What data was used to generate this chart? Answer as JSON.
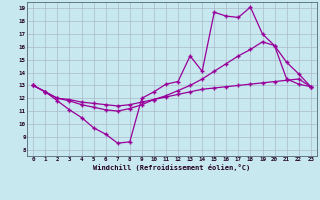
{
  "xlabel": "Windchill (Refroidissement éolien,°C)",
  "bg_color": "#c8e8f0",
  "grid_color": "#aabbc8",
  "line_color": "#990099",
  "xlim": [
    -0.5,
    23.5
  ],
  "ylim": [
    7.5,
    19.5
  ],
  "xticks": [
    0,
    1,
    2,
    3,
    4,
    5,
    6,
    7,
    8,
    9,
    10,
    11,
    12,
    13,
    14,
    15,
    16,
    17,
    18,
    19,
    20,
    21,
    22,
    23
  ],
  "yticks": [
    8,
    9,
    10,
    11,
    12,
    13,
    14,
    15,
    16,
    17,
    18,
    19
  ],
  "line1_x": [
    0,
    1,
    2,
    3,
    4,
    5,
    6,
    7,
    8,
    9,
    10,
    11,
    12,
    13,
    14,
    15,
    16,
    17,
    18,
    19,
    20,
    21,
    22,
    23
  ],
  "line1_y": [
    13.0,
    12.5,
    11.8,
    11.1,
    10.5,
    9.7,
    9.2,
    8.5,
    8.6,
    12.0,
    12.5,
    13.1,
    13.3,
    15.3,
    14.1,
    18.7,
    18.4,
    18.3,
    19.1,
    17.0,
    16.1,
    14.8,
    13.9,
    12.9
  ],
  "line2_x": [
    0,
    1,
    2,
    3,
    4,
    5,
    6,
    7,
    8,
    9,
    10,
    11,
    12,
    13,
    14,
    15,
    16,
    17,
    18,
    19,
    20,
    21,
    22,
    23
  ],
  "line2_y": [
    13.0,
    12.5,
    12.0,
    11.8,
    11.5,
    11.3,
    11.1,
    11.0,
    11.2,
    11.5,
    11.9,
    12.2,
    12.6,
    13.0,
    13.5,
    14.1,
    14.7,
    15.3,
    15.8,
    16.4,
    16.1,
    13.5,
    13.1,
    12.9
  ],
  "line3_x": [
    0,
    1,
    2,
    3,
    4,
    5,
    6,
    7,
    8,
    9,
    10,
    11,
    12,
    13,
    14,
    15,
    16,
    17,
    18,
    19,
    20,
    21,
    22,
    23
  ],
  "line3_y": [
    13.0,
    12.5,
    12.0,
    11.9,
    11.7,
    11.6,
    11.5,
    11.4,
    11.5,
    11.7,
    11.9,
    12.1,
    12.3,
    12.5,
    12.7,
    12.8,
    12.9,
    13.0,
    13.1,
    13.2,
    13.3,
    13.4,
    13.5,
    12.9
  ]
}
